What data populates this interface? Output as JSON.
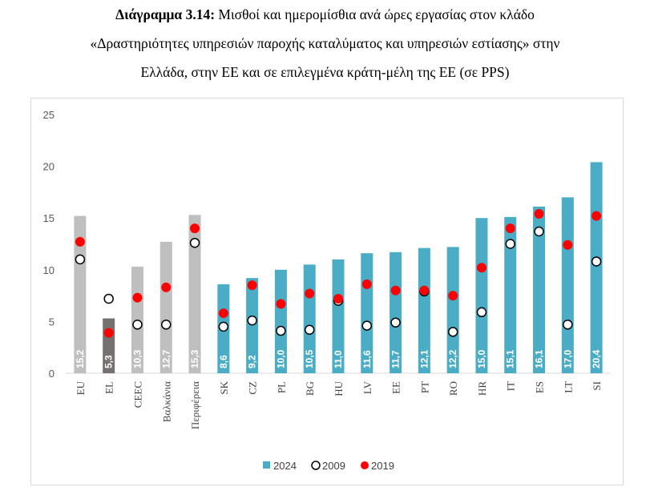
{
  "caption": {
    "label": "Διάγραμμα 3.14:",
    "line1": " Μισθοί και ημερομίσθια ανά ώρες εργασίας στον κλάδο",
    "line2": "«Δραστηριότητες υπηρεσιών παροχής καταλύματος και υπηρεσιών εστίασης» στην",
    "line3": "Ελλάδα, στην ΕΕ και σε επιλεγμένα κράτη-μέλη της ΕΕ (σε PPS)"
  },
  "chart_data": {
    "type": "bar",
    "ylim": [
      0,
      25
    ],
    "yticks": [
      0,
      5,
      10,
      15,
      20,
      25
    ],
    "grid": false,
    "legend_position": "bottom",
    "categories": [
      "EU",
      "EL",
      "CEEC",
      "Βαλκάνια",
      "Περιφέρεια",
      "SK",
      "CZ",
      "PL",
      "BG",
      "HU",
      "LV",
      "EE",
      "PT",
      "RO",
      "HR",
      "IT",
      "ES",
      "LT",
      "SI"
    ],
    "bar_labels": [
      "15,2",
      "5,3",
      "10,3",
      "12,7",
      "15,3",
      "8,6",
      "9,2",
      "10,0",
      "10,5",
      "11,0",
      "11,6",
      "11,7",
      "12,1",
      "12,2",
      "15,0",
      "15,1",
      "16,1",
      "17,0",
      "20,4"
    ],
    "bar_colors": [
      "#bfbfbf",
      "#767171",
      "#bfbfbf",
      "#bfbfbf",
      "#bfbfbf",
      "#4bacc6",
      "#4bacc6",
      "#4bacc6",
      "#4bacc6",
      "#4bacc6",
      "#4bacc6",
      "#4bacc6",
      "#4bacc6",
      "#4bacc6",
      "#4bacc6",
      "#4bacc6",
      "#4bacc6",
      "#4bacc6",
      "#4bacc6"
    ],
    "series": [
      {
        "name": "2024",
        "kind": "bar",
        "color": "#4bacc6",
        "values": [
          15.2,
          5.3,
          10.3,
          12.7,
          15.3,
          8.6,
          9.2,
          10.0,
          10.5,
          11.0,
          11.6,
          11.7,
          12.1,
          12.2,
          15.0,
          15.1,
          16.1,
          17.0,
          20.4
        ]
      },
      {
        "name": "2009",
        "kind": "marker-hollow",
        "color": "#000000",
        "values": [
          11.0,
          7.2,
          4.7,
          4.7,
          12.6,
          4.5,
          5.1,
          4.1,
          4.2,
          7.0,
          4.6,
          4.9,
          7.9,
          4.0,
          5.9,
          12.5,
          13.7,
          4.7,
          10.8
        ]
      },
      {
        "name": "2019",
        "kind": "marker-filled",
        "color": "#ff0000",
        "values": [
          12.7,
          3.9,
          7.3,
          8.3,
          14.0,
          5.8,
          8.5,
          6.7,
          7.7,
          7.2,
          8.6,
          8.0,
          8.0,
          7.5,
          10.2,
          14.0,
          15.4,
          12.4,
          15.2
        ]
      }
    ]
  }
}
